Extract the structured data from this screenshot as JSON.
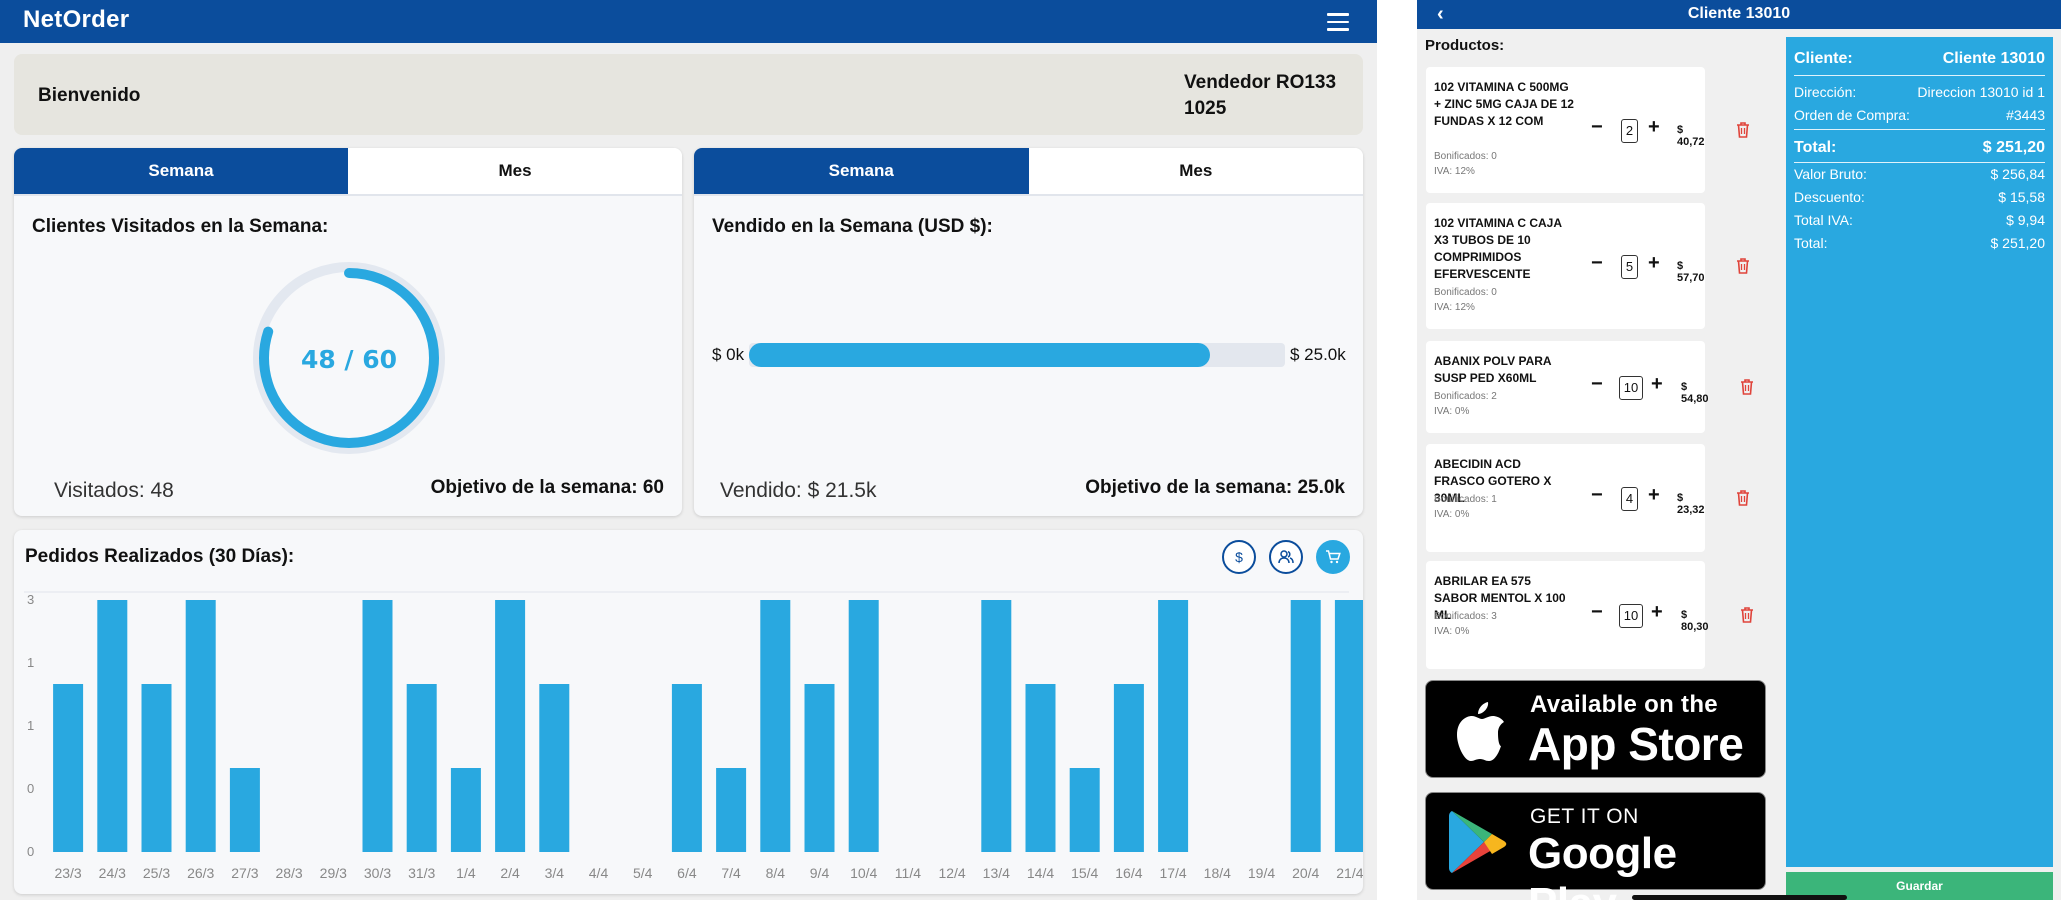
{
  "app": {
    "brand": "NetOrder"
  },
  "welcome": {
    "text": "Bienvenido",
    "vendor_line1": "Vendedor RO133",
    "vendor_line2": "1025"
  },
  "clients_card": {
    "tab_week": "Semana",
    "tab_month": "Mes",
    "title": "Clientes Visitados en la Semana:",
    "gauge_text": "48 / 60",
    "visited": 48,
    "target": 60,
    "footer_left": "Visitados: 48",
    "footer_right": "Objetivo de la semana: 60"
  },
  "sales_card": {
    "tab_week": "Semana",
    "tab_month": "Mes",
    "title": "Vendido en la Semana (USD $):",
    "min_label": "$ 0k",
    "max_label": "$ 25.0k",
    "progress": 0.86,
    "footer_left": "Vendido: $ 21.5k",
    "footer_right": "Objetivo de la semana: 25.0k"
  },
  "orders": {
    "title": "Pedidos Realizados (30 Días):",
    "icons": [
      "dollar-icon",
      "users-icon",
      "cart-icon"
    ]
  },
  "chart_data": {
    "type": "bar",
    "title": "Pedidos Realizados (30 Días):",
    "categories": [
      "23/3",
      "24/3",
      "25/3",
      "26/3",
      "27/3",
      "28/3",
      "29/3",
      "30/3",
      "31/3",
      "1/4",
      "2/4",
      "3/4",
      "4/4",
      "5/4",
      "6/4",
      "7/4",
      "8/4",
      "9/4",
      "10/4",
      "11/4",
      "12/4",
      "13/4",
      "14/4",
      "15/4",
      "16/4",
      "17/4",
      "18/4",
      "19/4",
      "20/4",
      "21/4"
    ],
    "values": [
      2,
      3,
      2,
      3,
      1,
      0,
      0,
      3,
      2,
      1,
      3,
      2,
      0,
      0,
      2,
      1,
      3,
      2,
      3,
      0,
      0,
      3,
      2,
      1,
      2,
      3,
      0,
      0,
      3,
      3
    ],
    "y_tick_labels": [
      "0",
      "0",
      "1",
      "1",
      "3"
    ],
    "ylim": [
      0,
      3
    ],
    "color": "#29a8e0"
  },
  "order_panel": {
    "title": "Cliente 13010",
    "products_label": "Productos:",
    "products": [
      {
        "name": "102  VITAMINA C 500MG + ZINC 5MG CAJA DE 12 FUNDAS X 12 COM",
        "bonus": "Bonificados: 0",
        "iva": "IVA: 12%",
        "qty": "2",
        "price": "$ 40,72"
      },
      {
        "name": "102 VITAMINA C CAJA X3 TUBOS DE 10 COMPRIMIDOS EFERVESCENTE",
        "bonus": "Bonificados: 0",
        "iva": "IVA: 12%",
        "qty": "5",
        "price": "$ 57,70"
      },
      {
        "name": "ABANIX POLV PARA SUSP PED X60ML",
        "bonus": "Bonificados: 2",
        "iva": "IVA: 0%",
        "qty": "10",
        "price": "$ 54,80"
      },
      {
        "name": "ABECIDIN ACD FRASCO GOTERO X 30ML",
        "bonus": "Bonificados: 1",
        "iva": "IVA: 0%",
        "qty": "4",
        "price": "$ 23,32"
      },
      {
        "name": "ABRILAR EA 575 SABOR MENTOL X 100 ML",
        "bonus": "Bonificados: 3",
        "iva": "IVA: 0%",
        "qty": "10",
        "price": "$ 80,30"
      }
    ],
    "appstore": {
      "line1": "Available on the",
      "line2": "App Store"
    },
    "googleplay": {
      "line1": "GET IT ON",
      "line2": "Google Play"
    },
    "summary": {
      "client_label": "Cliente:",
      "client_value": "Cliente 13010",
      "address_label": "Dirección:",
      "address_value": "Direccion 13010 id 1",
      "po_label": "Orden de Compra:",
      "po_value": "#3443",
      "total_label": "Total:",
      "total_value": "$ 251,20",
      "gross_label": "Valor Bruto:",
      "gross_value": "$ 256,84",
      "discount_label": "Descuento:",
      "discount_value": "$ 15,58",
      "iva_label": "Total IVA:",
      "iva_value": "$ 9,94",
      "total2_label": "Total:",
      "total2_value": "$ 251,20"
    },
    "save_label": "Guardar"
  }
}
